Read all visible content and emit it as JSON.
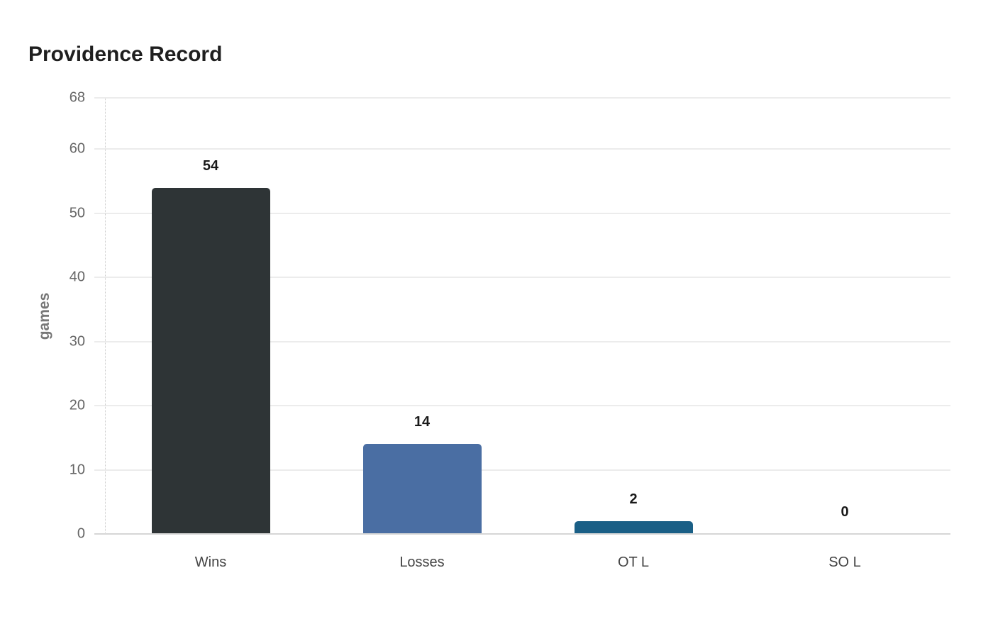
{
  "chart_data": {
    "type": "bar",
    "title": "Providence Record",
    "xlabel": "",
    "ylabel": "games",
    "categories": [
      "Wins",
      "Losses",
      "OT L",
      "SO L"
    ],
    "values": [
      54,
      14,
      2,
      0
    ],
    "colors": [
      "#2e3436",
      "#4a6ea3",
      "#1a5f86",
      "#1a5f86"
    ],
    "ylim": [
      0,
      68
    ],
    "yticks": [
      0,
      10,
      20,
      30,
      40,
      50,
      60,
      68
    ],
    "grid": true,
    "legend": false,
    "data_labels": true
  }
}
